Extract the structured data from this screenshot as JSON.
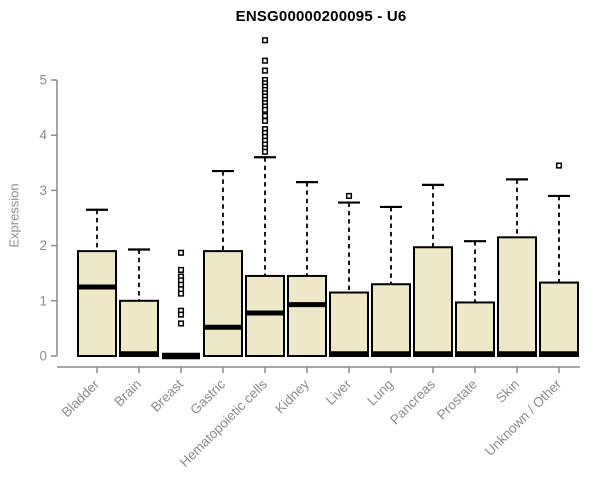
{
  "title": "ENSG00000200095 - U6",
  "colors": {
    "background": "#FFFFFF",
    "box_fill": "#EDE8C8",
    "box_border": "#000000",
    "median": "#000000",
    "whisker": "#000000",
    "axis": "#8C8C8C",
    "tick_label": "#8C8C8C",
    "title": "#000000"
  },
  "chart_data": {
    "type": "boxplot",
    "title": "ENSG00000200095 - U6",
    "xlabel": "",
    "ylabel": "Expression",
    "ylim": [
      0,
      5
    ],
    "yticks": [
      0,
      1,
      2,
      3,
      4,
      5
    ],
    "grid": false,
    "legend": null,
    "categories": [
      "Bladder",
      "Brain",
      "Breast",
      "Gastric",
      "Hematopoietic cells",
      "Kidney",
      "Liver",
      "Lung",
      "Pancreas",
      "Prostate",
      "Skin",
      "Unknown / Other"
    ],
    "series": [
      {
        "name": "Bladder",
        "low": 0,
        "q1": 0,
        "median": 1.25,
        "q3": 1.9,
        "high": 2.65,
        "outliers": []
      },
      {
        "name": "Brain",
        "low": 0,
        "q1": 0,
        "median": 0.04,
        "q3": 1.0,
        "high": 1.93,
        "outliers": []
      },
      {
        "name": "Breast",
        "low": 0,
        "q1": 0,
        "median": 0,
        "q3": 0,
        "high": 0,
        "outliers": [
          1.87,
          1.56,
          1.44,
          1.37,
          1.29,
          1.21,
          1.13,
          0.82,
          0.75,
          0.59
        ]
      },
      {
        "name": "Gastric",
        "low": 0,
        "q1": 0,
        "median": 0.52,
        "q3": 1.9,
        "high": 3.35,
        "outliers": []
      },
      {
        "name": "Hematopoietic cells",
        "low": 0,
        "q1": 0,
        "median": 0.78,
        "q3": 1.45,
        "high": 3.6,
        "outliers": [
          5.72,
          5.35,
          5.17,
          5.0,
          4.94,
          4.88,
          4.82,
          4.76,
          4.7,
          4.64,
          4.58,
          4.52,
          4.46,
          4.35,
          4.26,
          4.11,
          4.04,
          3.97,
          3.9,
          3.83,
          3.76,
          3.7
        ]
      },
      {
        "name": "Kidney",
        "low": 0,
        "q1": 0,
        "median": 0.93,
        "q3": 1.45,
        "high": 3.15,
        "outliers": []
      },
      {
        "name": "Liver",
        "low": 0,
        "q1": 0,
        "median": 0.04,
        "q3": 1.15,
        "high": 2.78,
        "outliers": [
          2.9
        ]
      },
      {
        "name": "Lung",
        "low": 0,
        "q1": 0,
        "median": 0.04,
        "q3": 1.3,
        "high": 2.7,
        "outliers": []
      },
      {
        "name": "Pancreas",
        "low": 0,
        "q1": 0,
        "median": 0.04,
        "q3": 1.97,
        "high": 3.1,
        "outliers": []
      },
      {
        "name": "Prostate",
        "low": 0,
        "q1": 0,
        "median": 0.04,
        "q3": 0.97,
        "high": 2.08,
        "outliers": []
      },
      {
        "name": "Skin",
        "low": 0,
        "q1": 0,
        "median": 0.04,
        "q3": 2.15,
        "high": 3.2,
        "outliers": []
      },
      {
        "name": "Unknown / Other",
        "low": 0,
        "q1": 0,
        "median": 0.04,
        "q3": 1.33,
        "high": 2.9,
        "outliers": [
          3.45
        ]
      }
    ]
  }
}
